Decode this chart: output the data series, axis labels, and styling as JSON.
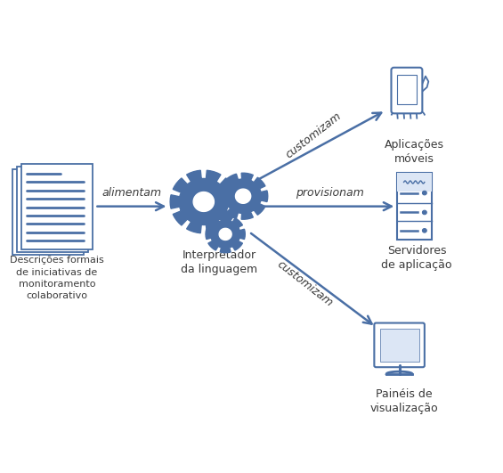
{
  "bg_color": "#ffffff",
  "arrow_color": "#4a6fa5",
  "text_color": "#3a3a3a",
  "icon_color": "#4a6fa5",
  "label_alimentam": "alimentam",
  "label_provisionam": "provisionam",
  "label_customizam_top": "customizam",
  "label_customizam_bot": "customizam",
  "label_docs": "Descrições formais\nde iniciativas de\nmonitoramento\ncolaborativo",
  "label_interp": "Interpretador\nda linguagem",
  "label_app": "Aplicações\nmóveis",
  "label_server": "Servidores\nde aplicação",
  "label_monitor": "Painéis de\nvisualização",
  "figsize": [
    5.65,
    5.31
  ],
  "dpi": 100,
  "xlim": [
    0,
    10
  ],
  "ylim": [
    0,
    10
  ]
}
